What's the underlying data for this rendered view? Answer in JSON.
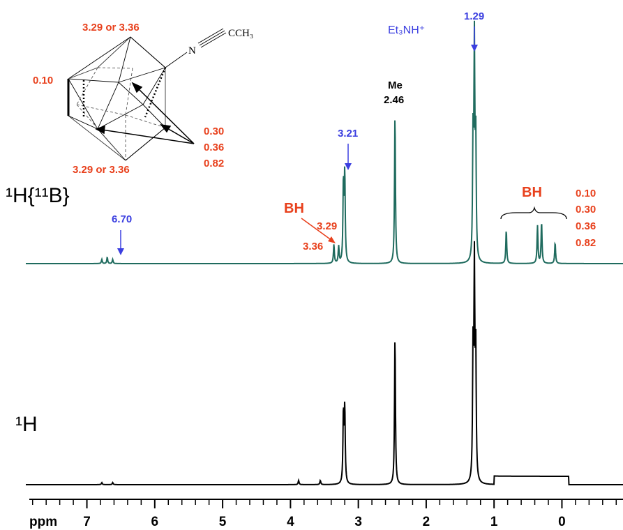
{
  "colors": {
    "trace_top": "#1f6b5e",
    "trace_bottom": "#000000",
    "annot_red": "#e8401c",
    "annot_blue": "#3b3fe0"
  },
  "labels": {
    "top_trace": "¹H{¹¹B}",
    "bottom_trace": "¹H",
    "axis_unit": "ppm"
  },
  "molecule": {
    "top_vertex": "3.29 or 3.36",
    "bottom_vertex": "3.29 or 3.36",
    "left_edge": "0.10",
    "belt_values": [
      "0.30",
      "0.36",
      "0.82"
    ],
    "n_atom": "N",
    "substituent": "CCH₃"
  },
  "annotations": {
    "nh_label": "6.70",
    "main_cage_label": "3.21",
    "bh_left_title": "BH",
    "bh_left_a": "3.29",
    "bh_left_b": "3.36",
    "me_title": "Me",
    "me_value": "2.46",
    "et_title": "Et₃NH⁺",
    "et_value": "1.29",
    "bh_right_title": "BH",
    "bh_right_values": [
      "0.10",
      "0.30",
      "0.36",
      "0.82"
    ]
  },
  "chart_data": {
    "type": "line",
    "xlabel": "ppm",
    "x_reversed": true,
    "xlim": [
      7.9,
      -0.9
    ],
    "xticks": [
      7,
      6,
      5,
      4,
      3,
      2,
      1,
      0
    ],
    "series": [
      {
        "name": "¹H{¹¹B}",
        "peaks": [
          {
            "ppm": 6.78,
            "height": 0.02
          },
          {
            "ppm": 6.7,
            "height": 0.03
          },
          {
            "ppm": 6.62,
            "height": 0.02
          },
          {
            "ppm": 3.36,
            "height": 0.09
          },
          {
            "ppm": 3.29,
            "height": 0.08
          },
          {
            "ppm": 3.22,
            "height": 0.38
          },
          {
            "ppm": 3.2,
            "height": 0.42
          },
          {
            "ppm": 2.46,
            "height": 0.71
          },
          {
            "ppm": 1.31,
            "height": 0.56
          },
          {
            "ppm": 1.29,
            "height": 1.0
          },
          {
            "ppm": 1.27,
            "height": 0.56
          },
          {
            "ppm": 0.82,
            "height": 0.16
          },
          {
            "ppm": 0.36,
            "height": 0.18
          },
          {
            "ppm": 0.3,
            "height": 0.2
          },
          {
            "ppm": 0.1,
            "height": 0.1
          }
        ]
      },
      {
        "name": "¹H",
        "peaks": [
          {
            "ppm": 6.78,
            "height": 0.01
          },
          {
            "ppm": 6.62,
            "height": 0.01
          },
          {
            "ppm": 3.88,
            "height": 0.02
          },
          {
            "ppm": 3.56,
            "height": 0.02
          },
          {
            "ppm": 3.22,
            "height": 0.34
          },
          {
            "ppm": 3.2,
            "height": 0.36
          },
          {
            "ppm": 2.46,
            "height": 0.71
          },
          {
            "ppm": 1.31,
            "height": 0.6
          },
          {
            "ppm": 1.29,
            "height": 1.0
          },
          {
            "ppm": 1.27,
            "height": 0.6
          }
        ],
        "broad_hump": {
          "from": 1.0,
          "to": -0.1,
          "height": 0.04
        }
      }
    ]
  }
}
